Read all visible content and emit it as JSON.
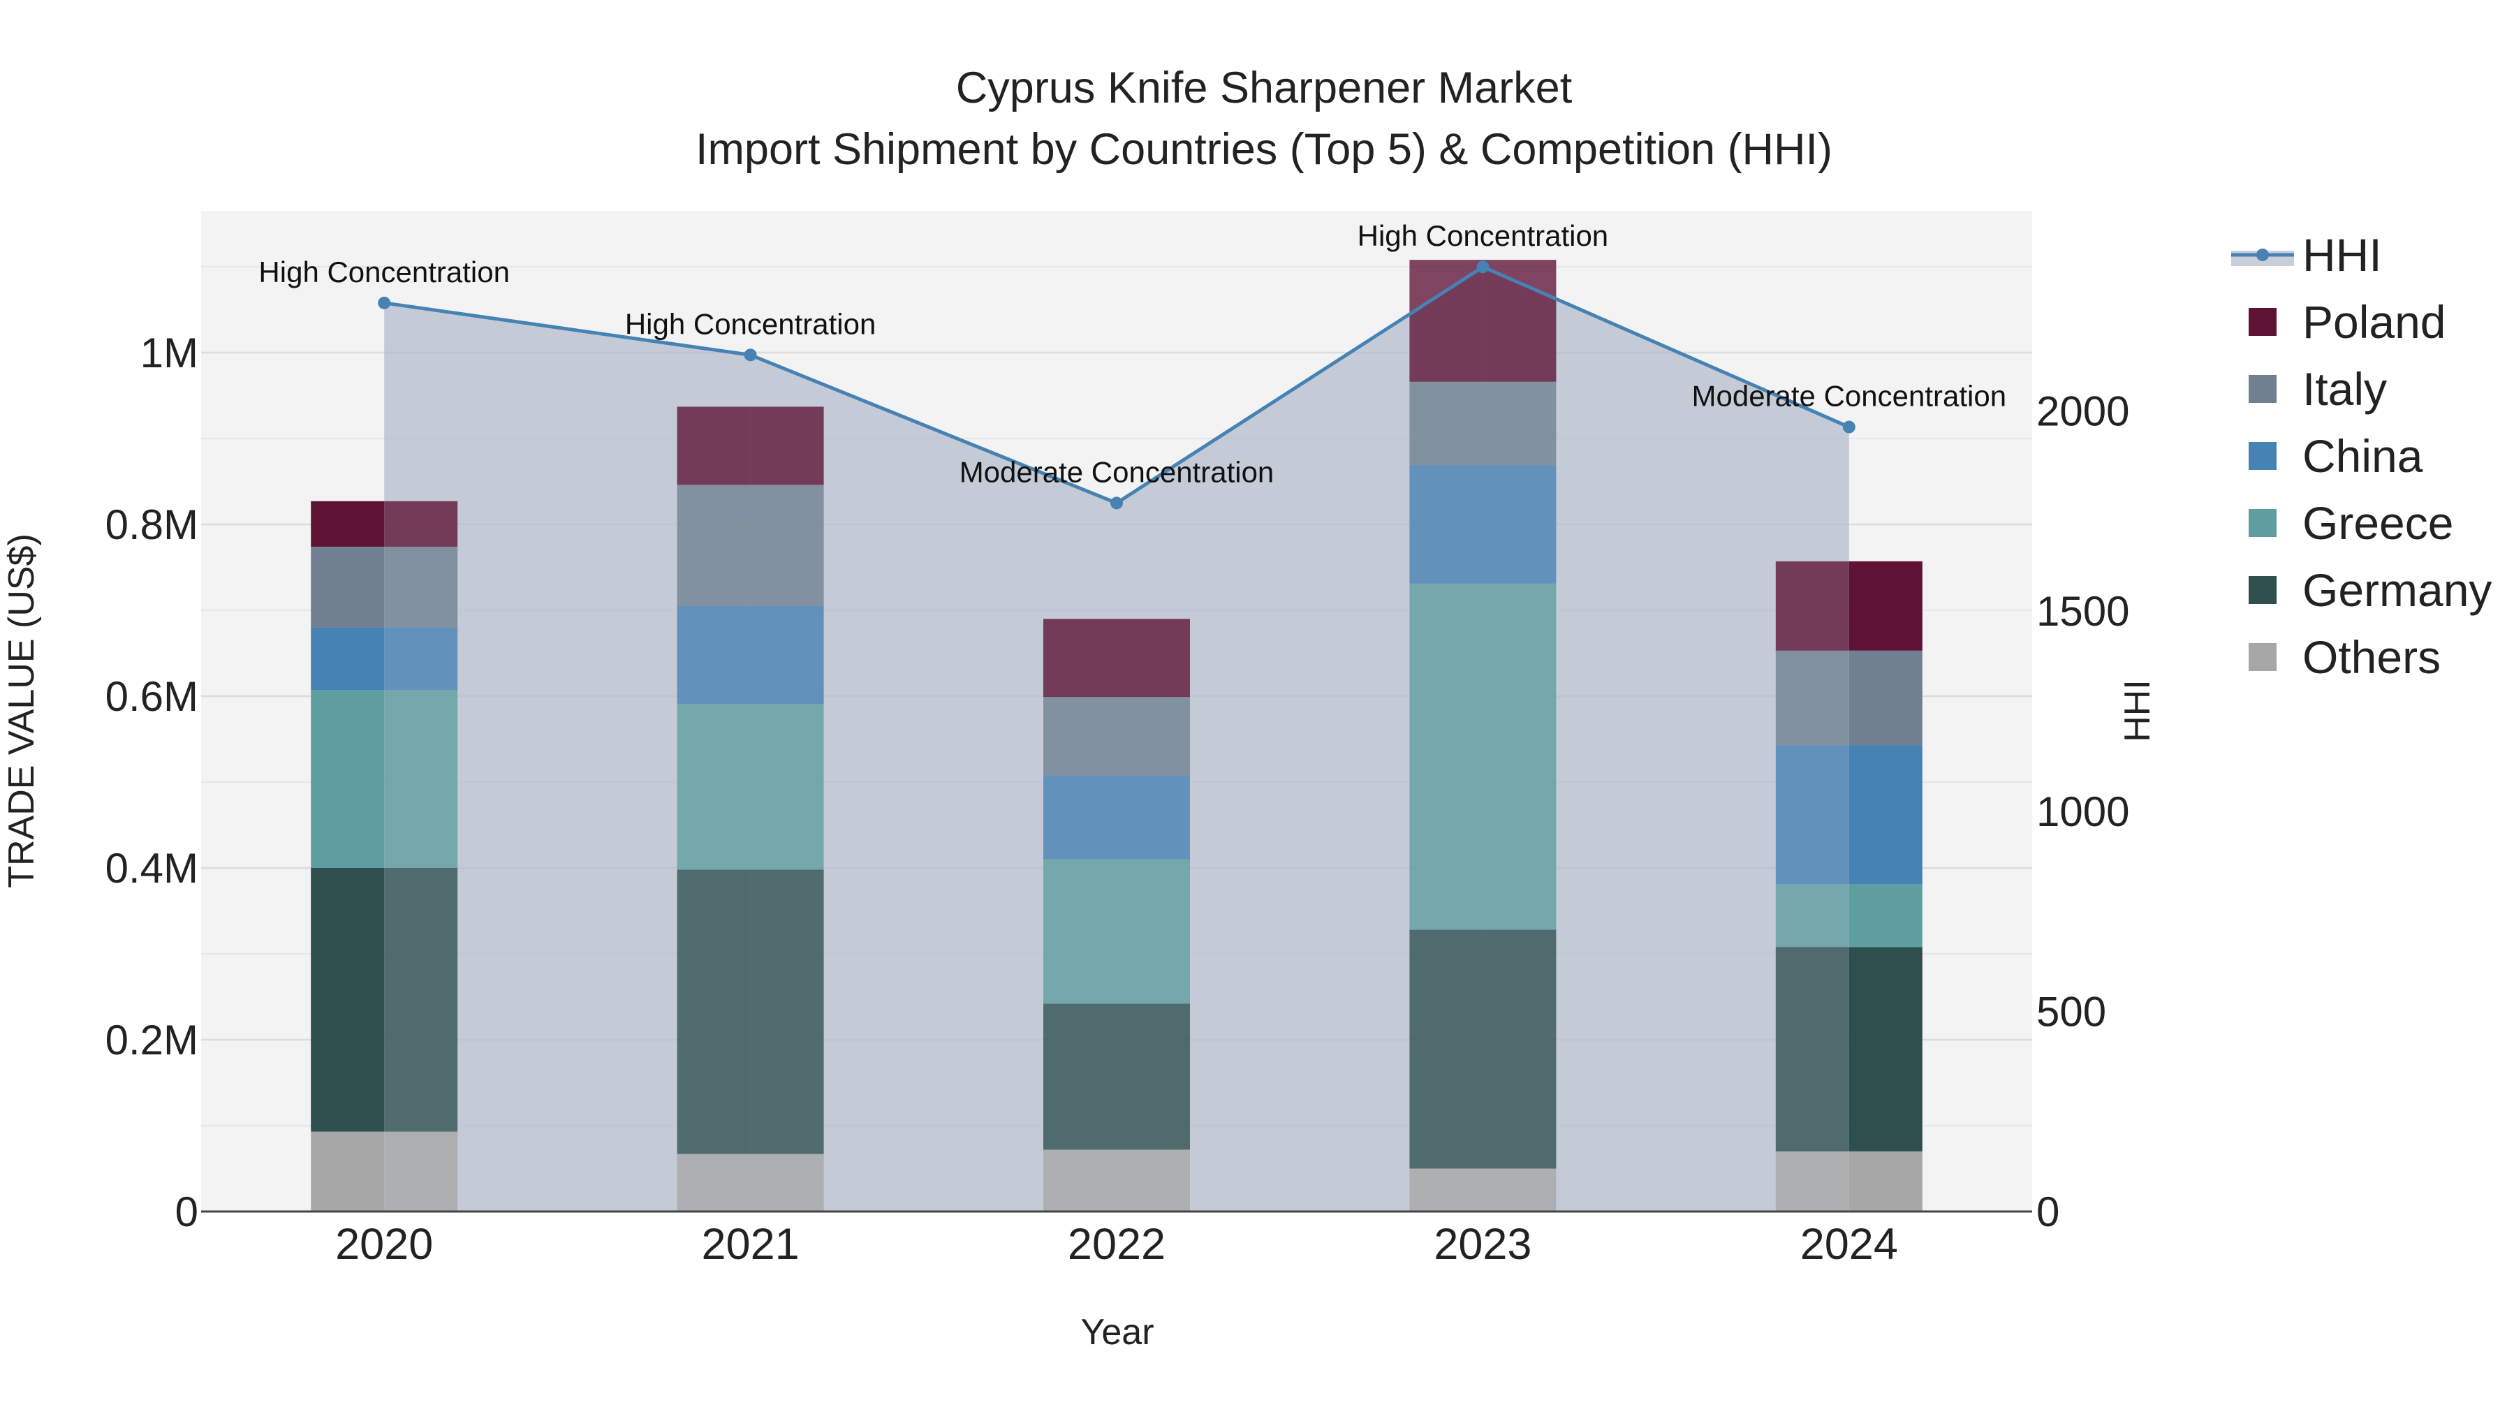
{
  "chart_data": {
    "type": "bar",
    "title": "Cyprus Knife Sharpener Market",
    "subtitle": "Import Shipment by Countries (Top 5) & Competition (HHI)",
    "xlabel": "Year",
    "ylabel": "TRADE VALUE (US$)",
    "y2label": "HHI",
    "categories": [
      "2020",
      "2021",
      "2022",
      "2023",
      "2024"
    ],
    "ylim": [
      0,
      1165000
    ],
    "y2lim": [
      0,
      2500
    ],
    "yticks": [
      0,
      200000,
      400000,
      600000,
      800000,
      1000000
    ],
    "yticklabels": [
      "0",
      "0.2M",
      "0.4M",
      "0.6M",
      "0.8M",
      "1M"
    ],
    "y2ticks": [
      0,
      500,
      1000,
      1500,
      2000
    ],
    "y2ticklabels": [
      "0",
      "500",
      "1000",
      "1500",
      "2000"
    ],
    "colors": {
      "Others": "#a7a7a7",
      "Germany": "#2f4f4f",
      "Greece": "#5f9ea0",
      "China": "#4682b4",
      "Italy": "#708090",
      "Poland": "#5e1234",
      "hhi_line": "#4682b4",
      "hhi_fill": "#b0b8c8",
      "plot_bg": "#f3f3f3"
    },
    "series": [
      {
        "name": "Others",
        "values": [
          93000,
          67000,
          72000,
          50000,
          70000
        ]
      },
      {
        "name": "Germany",
        "values": [
          307000,
          331000,
          170000,
          278000,
          238000
        ]
      },
      {
        "name": "Greece",
        "values": [
          207000,
          193000,
          168000,
          403000,
          73000
        ]
      },
      {
        "name": "China",
        "values": [
          73000,
          114000,
          98000,
          138000,
          162000
        ]
      },
      {
        "name": "Italy",
        "values": [
          94000,
          141000,
          91000,
          97000,
          110000
        ]
      },
      {
        "name": "Poland",
        "values": [
          53000,
          91000,
          91000,
          142000,
          104000
        ]
      }
    ],
    "hhi": {
      "name": "HHI",
      "values": [
        2270,
        2140,
        1770,
        2360,
        1960
      ],
      "annotations": [
        "High Concentration",
        "High Concentration",
        "Moderate Concentration",
        "High Concentration",
        "Moderate Concentration"
      ]
    },
    "highlighted_half": [
      "left",
      "none",
      "none",
      "none",
      "right"
    ],
    "legend": [
      "HHI",
      "Poland",
      "Italy",
      "China",
      "Greece",
      "Germany",
      "Others"
    ],
    "legend_position": "right"
  }
}
